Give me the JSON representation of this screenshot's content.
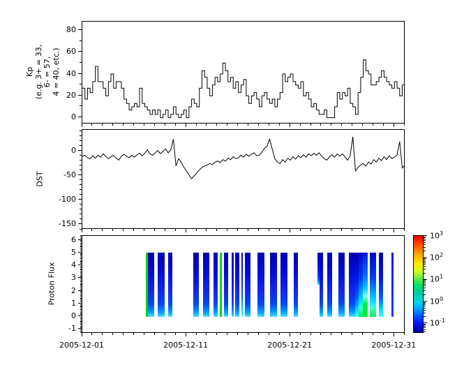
{
  "figure": {
    "bg": "#ffffff",
    "fg": "#000000"
  },
  "x_axis": {
    "tick_labels": [
      "2005-12-01",
      "2005-12-11",
      "2005-12-21",
      "2005-12-31"
    ],
    "tick_days": [
      0,
      10,
      20,
      30
    ],
    "minor_step_days": 1,
    "range_days": [
      0,
      31.05
    ]
  },
  "chart_data": [
    {
      "type": "line",
      "line_style": "step",
      "ylabel_lines": [
        "Kp",
        "(e.g. 3+ = 33,",
        "6- = 57,",
        "4 = 40, etc.)"
      ],
      "yticks": [
        80,
        60,
        40,
        20,
        0
      ],
      "y_minor_step": 10,
      "ylim": [
        -6,
        88
      ],
      "x_start_day": 0,
      "x_step_days": 0.25,
      "values": [
        27,
        17,
        27,
        23,
        33,
        47,
        33,
        33,
        27,
        20,
        33,
        40,
        27,
        33,
        33,
        27,
        17,
        13,
        7,
        10,
        13,
        10,
        27,
        13,
        10,
        7,
        3,
        7,
        3,
        7,
        0,
        3,
        7,
        0,
        3,
        10,
        3,
        0,
        3,
        7,
        0,
        10,
        17,
        13,
        10,
        27,
        43,
        37,
        27,
        20,
        30,
        37,
        33,
        40,
        50,
        43,
        33,
        37,
        27,
        33,
        23,
        30,
        35,
        20,
        13,
        20,
        23,
        17,
        10,
        20,
        23,
        17,
        13,
        17,
        10,
        17,
        23,
        40,
        33,
        37,
        40,
        33,
        30,
        27,
        33,
        20,
        23,
        17,
        10,
        13,
        7,
        3,
        3,
        7,
        0,
        0,
        0,
        10,
        23,
        17,
        23,
        20,
        27,
        13,
        10,
        3,
        23,
        37,
        53,
        43,
        40,
        30,
        30,
        33,
        37,
        43,
        37,
        33,
        30,
        27,
        33,
        27,
        20,
        30,
        33
      ]
    },
    {
      "type": "line",
      "line_style": "linear",
      "ylabel": "DST",
      "yticks": [
        0,
        -50,
        -100,
        -150
      ],
      "y_minor_step": 10,
      "ylim": [
        -160,
        44
      ],
      "x_start_day": 0,
      "x_step_days": 0.25,
      "values": [
        -10,
        -8,
        -13,
        -15,
        -9,
        -14,
        -8,
        -12,
        -5,
        -10,
        -15,
        -11,
        -8,
        -14,
        -18,
        -10,
        -6,
        -10,
        -13,
        -8,
        -12,
        -7,
        -4,
        -9,
        -4,
        3,
        -5,
        -8,
        -3,
        2,
        -5,
        0,
        5,
        -3,
        3,
        25,
        -30,
        -15,
        -22,
        -32,
        -40,
        -48,
        -56,
        -50,
        -44,
        -38,
        -33,
        -30,
        -28,
        -25,
        -27,
        -22,
        -20,
        -23,
        -17,
        -20,
        -14,
        -17,
        -11,
        -15,
        -13,
        -8,
        -12,
        -6,
        -10,
        -6,
        -3,
        -9,
        -8,
        -2,
        6,
        10,
        25,
        5,
        -15,
        -22,
        -25,
        -17,
        -22,
        -14,
        -18,
        -11,
        -16,
        -9,
        -13,
        -7,
        -12,
        -5,
        -9,
        -4,
        -8,
        -3,
        -10,
        -15,
        -18,
        -11,
        -7,
        -12,
        -5,
        -10,
        -5,
        -12,
        -18,
        -8,
        30,
        -40,
        -33,
        -28,
        -25,
        -30,
        -22,
        -26,
        -17,
        -22,
        -14,
        -19,
        -11,
        -17,
        -9,
        -15,
        -12,
        -7,
        20,
        -34,
        -28
      ]
    },
    {
      "type": "heatmap",
      "ylabel": "Proton Flux",
      "yticks": [
        6,
        5,
        4,
        3,
        2,
        1,
        0,
        -1
      ],
      "y_minor_step": 0.1,
      "ylim": [
        -1.33,
        6.33
      ],
      "bar_y_range": [
        0,
        5
      ],
      "bars": [
        {
          "d0": 6.2,
          "d1": 6.35,
          "style": "green_line"
        },
        {
          "d0": 6.35,
          "d1": 7.0,
          "style": "blue"
        },
        {
          "d0": 7.3,
          "d1": 8.0,
          "style": "blue"
        },
        {
          "d0": 8.3,
          "d1": 8.7,
          "style": "blue"
        },
        {
          "d0": 10.7,
          "d1": 11.3,
          "style": "blue"
        },
        {
          "d0": 11.7,
          "d1": 12.3,
          "style": "blue"
        },
        {
          "d0": 12.7,
          "d1": 13.1,
          "style": "blue"
        },
        {
          "d0": 13.3,
          "d1": 13.45,
          "style": "green_line"
        },
        {
          "d0": 13.7,
          "d1": 14.1,
          "style": "blue"
        },
        {
          "d0": 14.4,
          "d1": 14.6,
          "style": "blue"
        },
        {
          "d0": 14.75,
          "d1": 15.15,
          "style": "blue"
        },
        {
          "d0": 15.35,
          "d1": 15.5,
          "style": "cyan_bottom"
        },
        {
          "d0": 15.7,
          "d1": 16.2,
          "style": "blue"
        },
        {
          "d0": 16.9,
          "d1": 17.6,
          "style": "blue"
        },
        {
          "d0": 18.1,
          "d1": 18.8,
          "style": "blue"
        },
        {
          "d0": 19.1,
          "d1": 19.8,
          "style": "blue"
        },
        {
          "d0": 20.4,
          "d1": 20.8,
          "style": "blue"
        },
        {
          "d0": 22.7,
          "d1": 22.85,
          "style": "blue",
          "y0": 2.5,
          "y1": 5
        },
        {
          "d0": 22.85,
          "d1": 23.2,
          "style": "blue"
        },
        {
          "d0": 23.6,
          "d1": 24.1,
          "style": "blue"
        },
        {
          "d0": 24.7,
          "d1": 25.3,
          "style": "blue"
        },
        {
          "d0": 25.7,
          "d1": 26.3,
          "style": "blue"
        },
        {
          "d0": 26.3,
          "d1": 26.65,
          "style": "cyan_bottom"
        },
        {
          "d0": 26.65,
          "d1": 27.0,
          "style": "storm"
        },
        {
          "d0": 27.0,
          "d1": 27.5,
          "style": "storm_peak"
        },
        {
          "d0": 27.7,
          "d1": 28.3,
          "style": "storm"
        },
        {
          "d0": 28.6,
          "d1": 29.0,
          "style": "cyan_bottom"
        },
        {
          "d0": 29.8,
          "d1": 29.95,
          "style": "blue_thin"
        }
      ],
      "colorbar": {
        "tick_exponents": [
          3,
          2,
          1,
          0,
          -1
        ],
        "log_range": [
          -1.45,
          3.03
        ]
      }
    }
  ],
  "palette": {
    "line_color": "#000000",
    "bar_styles": {
      "blue": [
        [
          0,
          "#0000b0"
        ],
        [
          0.35,
          "#0010dc"
        ],
        [
          0.6,
          "#1428e8"
        ],
        [
          0.8,
          "#0048f4"
        ],
        [
          0.93,
          "#00a0ff"
        ],
        [
          1,
          "#55dcff"
        ]
      ],
      "cyan_bottom": [
        [
          0,
          "#0000b0"
        ],
        [
          0.4,
          "#0018e0"
        ],
        [
          0.7,
          "#0060ff"
        ],
        [
          0.85,
          "#00c4ff"
        ],
        [
          1,
          "#40ffff"
        ]
      ],
      "green_line": [
        [
          0,
          "#00d800"
        ],
        [
          1,
          "#00d800"
        ]
      ],
      "storm": [
        [
          0,
          "#0008c8"
        ],
        [
          0.4,
          "#0040f0"
        ],
        [
          0.62,
          "#00a0ff"
        ],
        [
          0.75,
          "#00e0ff"
        ],
        [
          0.86,
          "#40ffd0"
        ],
        [
          1,
          "#00ee50"
        ]
      ],
      "storm_peak": [
        [
          0,
          "#0018d8"
        ],
        [
          0.35,
          "#0070ff"
        ],
        [
          0.55,
          "#00c8ff"
        ],
        [
          0.68,
          "#80ffe0"
        ],
        [
          0.8,
          "#00ee44"
        ],
        [
          1,
          "#00ee44"
        ]
      ],
      "blue_thin": [
        [
          0,
          "#0018e0"
        ],
        [
          1,
          "#0040ff"
        ]
      ]
    },
    "colorbar_gradient": [
      [
        0,
        "#f00000"
      ],
      [
        0.1,
        "#ff5500"
      ],
      [
        0.2,
        "#ffaa00"
      ],
      [
        0.29,
        "#ffee00"
      ],
      [
        0.37,
        "#ccff22"
      ],
      [
        0.45,
        "#55ee44"
      ],
      [
        0.52,
        "#00dd66"
      ],
      [
        0.6,
        "#00ccaa"
      ],
      [
        0.68,
        "#00d8e8"
      ],
      [
        0.75,
        "#00aaff"
      ],
      [
        0.83,
        "#0055ff"
      ],
      [
        0.91,
        "#0011ee"
      ],
      [
        1,
        "#0000a0"
      ]
    ]
  }
}
